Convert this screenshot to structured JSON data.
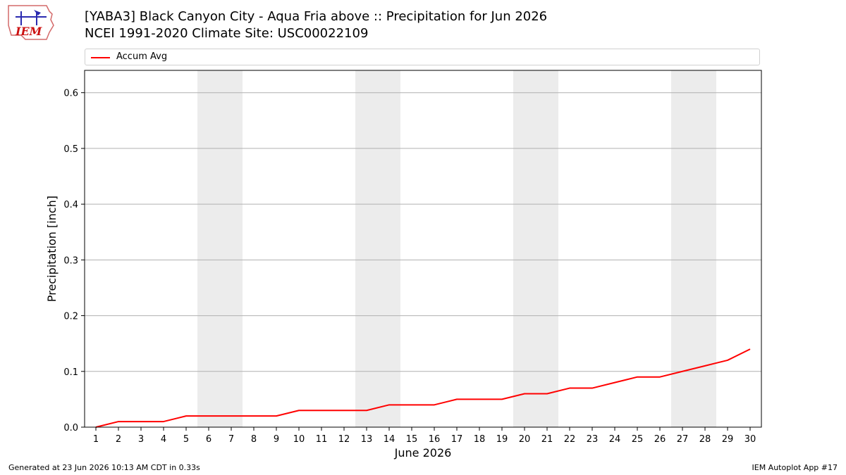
{
  "header": {
    "logo_text": "IEM",
    "title_line1": "[YABA3] Black Canyon City - Aqua Fria above :: Precipitation for Jun 2026",
    "title_line2": "NCEI 1991-2020 Climate Site: USC00022109"
  },
  "footer": {
    "left": "Generated at 23 Jun 2026 10:13 AM CDT in 0.33s",
    "right": "IEM Autoplot App #17"
  },
  "colors": {
    "series": "#ff0000",
    "weekend_band": "#ececec",
    "grid": "#b0b0b0"
  },
  "chart_data": {
    "type": "line",
    "title": "[YABA3] Black Canyon City - Aqua Fria above :: Precipitation for Jun 2026",
    "subtitle": "NCEI 1991-2020 Climate Site: USC00022109",
    "xlabel": "June 2026",
    "ylabel": "Precipitation [inch]",
    "legend_position": "top",
    "grid": "y",
    "xlim": [
      0.5,
      30.5
    ],
    "ylim": [
      0,
      0.64
    ],
    "x_ticks": [
      "1",
      "2",
      "3",
      "4",
      "5",
      "6",
      "7",
      "8",
      "9",
      "10",
      "11",
      "12",
      "13",
      "14",
      "15",
      "16",
      "17",
      "18",
      "19",
      "20",
      "21",
      "22",
      "23",
      "24",
      "25",
      "26",
      "27",
      "28",
      "29",
      "30"
    ],
    "y_ticks": [
      {
        "value": 0.0,
        "label": "0.0"
      },
      {
        "value": 0.1,
        "label": "0.1"
      },
      {
        "value": 0.2,
        "label": "0.2"
      },
      {
        "value": 0.3,
        "label": "0.3"
      },
      {
        "value": 0.4,
        "label": "0.4"
      },
      {
        "value": 0.5,
        "label": "0.5"
      },
      {
        "value": 0.6,
        "label": "0.6"
      }
    ],
    "weekend_bands": [
      [
        6,
        7
      ],
      [
        13,
        14
      ],
      [
        20,
        21
      ],
      [
        27,
        28
      ]
    ],
    "series": [
      {
        "name": "Accum Avg",
        "x": [
          1,
          2,
          3,
          4,
          5,
          6,
          7,
          8,
          9,
          10,
          11,
          12,
          13,
          14,
          15,
          16,
          17,
          18,
          19,
          20,
          21,
          22,
          23,
          24,
          25,
          26,
          27,
          28,
          29,
          30
        ],
        "values": [
          0.0,
          0.01,
          0.01,
          0.01,
          0.02,
          0.02,
          0.02,
          0.02,
          0.02,
          0.03,
          0.03,
          0.03,
          0.03,
          0.04,
          0.04,
          0.04,
          0.05,
          0.05,
          0.05,
          0.06,
          0.06,
          0.07,
          0.07,
          0.08,
          0.09,
          0.09,
          0.1,
          0.11,
          0.12,
          0.14
        ]
      }
    ]
  }
}
